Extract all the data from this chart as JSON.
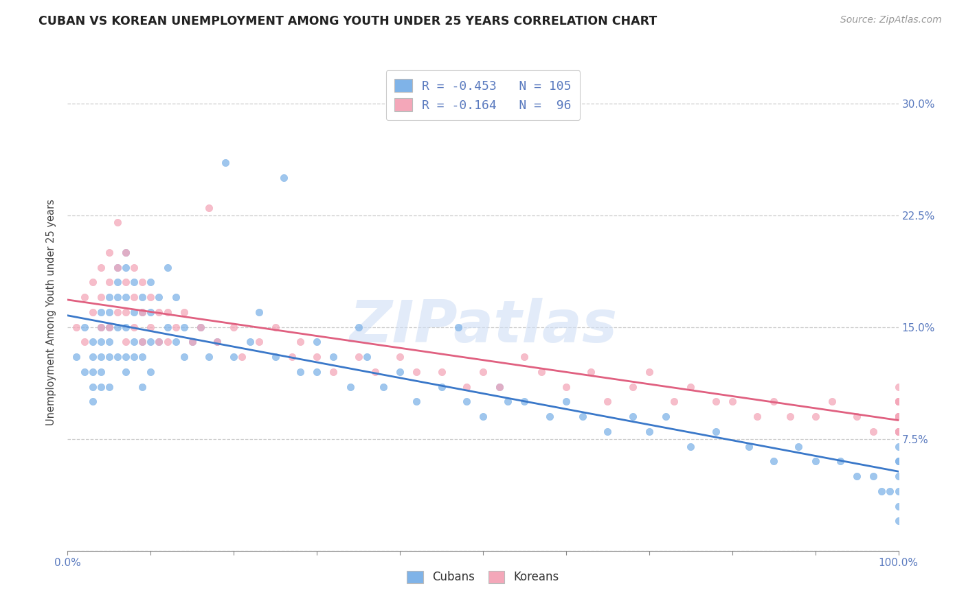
{
  "title": "CUBAN VS KOREAN UNEMPLOYMENT AMONG YOUTH UNDER 25 YEARS CORRELATION CHART",
  "source": "Source: ZipAtlas.com",
  "ylabel": "Unemployment Among Youth under 25 years",
  "ytick_labels": [
    "",
    "7.5%",
    "15.0%",
    "22.5%",
    "30.0%"
  ],
  "ytick_vals": [
    0.0,
    0.075,
    0.15,
    0.225,
    0.3
  ],
  "legend_line1": "R = -0.453   N = 105",
  "legend_line2": "R = -0.164   N =  96",
  "color_cubans": "#7fb3e8",
  "color_koreans": "#f4a7b9",
  "line_color_cubans": "#3a78c9",
  "line_color_koreans": "#e06080",
  "background_color": "#ffffff",
  "watermark": "ZIPatlas",
  "text_color": "#5a7abf",
  "cubans_x": [
    0.01,
    0.02,
    0.02,
    0.03,
    0.03,
    0.03,
    0.03,
    0.03,
    0.04,
    0.04,
    0.04,
    0.04,
    0.04,
    0.04,
    0.05,
    0.05,
    0.05,
    0.05,
    0.05,
    0.05,
    0.06,
    0.06,
    0.06,
    0.06,
    0.06,
    0.07,
    0.07,
    0.07,
    0.07,
    0.07,
    0.07,
    0.08,
    0.08,
    0.08,
    0.08,
    0.09,
    0.09,
    0.09,
    0.09,
    0.09,
    0.1,
    0.1,
    0.1,
    0.1,
    0.11,
    0.11,
    0.12,
    0.12,
    0.13,
    0.13,
    0.14,
    0.14,
    0.15,
    0.16,
    0.17,
    0.18,
    0.19,
    0.2,
    0.22,
    0.23,
    0.25,
    0.26,
    0.28,
    0.3,
    0.3,
    0.32,
    0.34,
    0.35,
    0.36,
    0.38,
    0.4,
    0.42,
    0.45,
    0.47,
    0.48,
    0.5,
    0.52,
    0.53,
    0.55,
    0.58,
    0.6,
    0.62,
    0.65,
    0.68,
    0.7,
    0.72,
    0.75,
    0.78,
    0.82,
    0.85,
    0.88,
    0.9,
    0.93,
    0.95,
    0.97,
    0.98,
    0.99,
    1.0,
    1.0,
    1.0,
    1.0,
    1.0,
    1.0,
    1.0,
    1.0
  ],
  "cubans_y": [
    0.13,
    0.15,
    0.12,
    0.14,
    0.13,
    0.12,
    0.11,
    0.1,
    0.16,
    0.15,
    0.14,
    0.13,
    0.12,
    0.11,
    0.17,
    0.16,
    0.15,
    0.14,
    0.13,
    0.11,
    0.19,
    0.18,
    0.17,
    0.15,
    0.13,
    0.2,
    0.19,
    0.17,
    0.15,
    0.13,
    0.12,
    0.18,
    0.16,
    0.14,
    0.13,
    0.17,
    0.16,
    0.14,
    0.13,
    0.11,
    0.18,
    0.16,
    0.14,
    0.12,
    0.17,
    0.14,
    0.19,
    0.15,
    0.17,
    0.14,
    0.15,
    0.13,
    0.14,
    0.15,
    0.13,
    0.14,
    0.26,
    0.13,
    0.14,
    0.16,
    0.13,
    0.25,
    0.12,
    0.14,
    0.12,
    0.13,
    0.11,
    0.15,
    0.13,
    0.11,
    0.12,
    0.1,
    0.11,
    0.15,
    0.1,
    0.09,
    0.11,
    0.1,
    0.1,
    0.09,
    0.1,
    0.09,
    0.08,
    0.09,
    0.08,
    0.09,
    0.07,
    0.08,
    0.07,
    0.06,
    0.07,
    0.06,
    0.06,
    0.05,
    0.05,
    0.04,
    0.04,
    0.08,
    0.07,
    0.06,
    0.06,
    0.05,
    0.04,
    0.03,
    0.02
  ],
  "koreans_x": [
    0.01,
    0.02,
    0.02,
    0.03,
    0.03,
    0.04,
    0.04,
    0.04,
    0.05,
    0.05,
    0.05,
    0.06,
    0.06,
    0.06,
    0.07,
    0.07,
    0.07,
    0.07,
    0.08,
    0.08,
    0.08,
    0.09,
    0.09,
    0.09,
    0.1,
    0.1,
    0.11,
    0.11,
    0.12,
    0.12,
    0.13,
    0.14,
    0.15,
    0.16,
    0.17,
    0.18,
    0.2,
    0.21,
    0.23,
    0.25,
    0.27,
    0.28,
    0.3,
    0.32,
    0.35,
    0.37,
    0.4,
    0.42,
    0.45,
    0.48,
    0.5,
    0.52,
    0.55,
    0.57,
    0.6,
    0.63,
    0.65,
    0.68,
    0.7,
    0.73,
    0.75,
    0.78,
    0.8,
    0.83,
    0.85,
    0.87,
    0.9,
    0.92,
    0.95,
    0.97,
    1.0,
    1.0,
    1.0,
    1.0,
    1.0,
    1.0,
    1.0,
    1.0,
    1.0,
    1.0,
    1.0,
    1.0,
    1.0,
    1.0,
    1.0,
    1.0,
    1.0,
    1.0,
    1.0,
    1.0,
    1.0,
    1.0,
    1.0,
    1.0,
    1.0,
    1.0
  ],
  "koreans_y": [
    0.15,
    0.17,
    0.14,
    0.18,
    0.16,
    0.19,
    0.17,
    0.15,
    0.2,
    0.18,
    0.15,
    0.22,
    0.19,
    0.16,
    0.2,
    0.18,
    0.16,
    0.14,
    0.19,
    0.17,
    0.15,
    0.18,
    0.16,
    0.14,
    0.17,
    0.15,
    0.16,
    0.14,
    0.16,
    0.14,
    0.15,
    0.16,
    0.14,
    0.15,
    0.23,
    0.14,
    0.15,
    0.13,
    0.14,
    0.15,
    0.13,
    0.14,
    0.13,
    0.12,
    0.13,
    0.12,
    0.13,
    0.12,
    0.12,
    0.11,
    0.12,
    0.11,
    0.13,
    0.12,
    0.11,
    0.12,
    0.1,
    0.11,
    0.12,
    0.1,
    0.11,
    0.1,
    0.1,
    0.09,
    0.1,
    0.09,
    0.09,
    0.1,
    0.09,
    0.08,
    0.11,
    0.1,
    0.09,
    0.1,
    0.09,
    0.1,
    0.08,
    0.09,
    0.1,
    0.09,
    0.08,
    0.09,
    0.1,
    0.08,
    0.09,
    0.1,
    0.09,
    0.08,
    0.09,
    0.08,
    0.1,
    0.09,
    0.08,
    0.09,
    0.1,
    0.09
  ]
}
